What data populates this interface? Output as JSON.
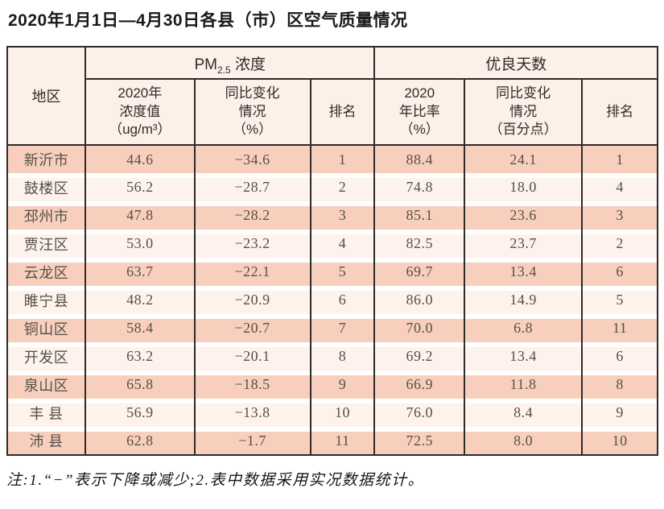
{
  "page": {
    "title": "2020年1月1日—4月30日各县（市）区空气质量情况",
    "note": "注:1.“−”表示下降或减少;2.表中数据采用实况数据统计。"
  },
  "table": {
    "region_header": "地区",
    "pm_group": {
      "prefix": "PM",
      "sub": "2.5",
      "suffix": " 浓度"
    },
    "good_group": "优良天数",
    "sub_headers": [
      "2020年\n浓度值\n（ug/m³）",
      "同比变化\n情况\n（%）",
      "排名",
      "2020\n年比率\n（%）",
      "同比变化\n情况\n（百分点）",
      "排名"
    ],
    "columns": [
      "地区",
      "2020年浓度值（ug/m³）",
      "同比变化情况（%）",
      "排名",
      "2020年比率（%）",
      "同比变化情况（百分点）",
      "排名"
    ],
    "rows": [
      {
        "region": "新沂市",
        "pm_value": "44.6",
        "pm_change": "−34.6",
        "pm_rank": "1",
        "good_ratio": "88.4",
        "good_change": "24.1",
        "good_rank": "1"
      },
      {
        "region": "鼓楼区",
        "pm_value": "56.2",
        "pm_change": "−28.7",
        "pm_rank": "2",
        "good_ratio": "74.8",
        "good_change": "18.0",
        "good_rank": "4"
      },
      {
        "region": "邳州市",
        "pm_value": "47.8",
        "pm_change": "−28.2",
        "pm_rank": "3",
        "good_ratio": "85.1",
        "good_change": "23.6",
        "good_rank": "3"
      },
      {
        "region": "贾汪区",
        "pm_value": "53.0",
        "pm_change": "−23.2",
        "pm_rank": "4",
        "good_ratio": "82.5",
        "good_change": "23.7",
        "good_rank": "2"
      },
      {
        "region": "云龙区",
        "pm_value": "63.7",
        "pm_change": "−22.1",
        "pm_rank": "5",
        "good_ratio": "69.7",
        "good_change": "13.4",
        "good_rank": "6"
      },
      {
        "region": "睢宁县",
        "pm_value": "48.2",
        "pm_change": "−20.9",
        "pm_rank": "6",
        "good_ratio": "86.0",
        "good_change": "14.9",
        "good_rank": "5"
      },
      {
        "region": "铜山区",
        "pm_value": "58.4",
        "pm_change": "−20.7",
        "pm_rank": "7",
        "good_ratio": "70.0",
        "good_change": "6.8",
        "good_rank": "11"
      },
      {
        "region": "开发区",
        "pm_value": "63.2",
        "pm_change": "−20.1",
        "pm_rank": "8",
        "good_ratio": "69.2",
        "good_change": "13.4",
        "good_rank": "6"
      },
      {
        "region": "泉山区",
        "pm_value": "65.8",
        "pm_change": "−18.5",
        "pm_rank": "9",
        "good_ratio": "66.9",
        "good_change": "11.8",
        "good_rank": "8"
      },
      {
        "region": "丰 县",
        "pm_value": "56.9",
        "pm_change": "−13.8",
        "pm_rank": "10",
        "good_ratio": "76.0",
        "good_change": "8.4",
        "good_rank": "9"
      },
      {
        "region": "沛 县",
        "pm_value": "62.8",
        "pm_change": "−1.7",
        "pm_rank": "11",
        "good_ratio": "72.5",
        "good_change": "8.0",
        "good_rank": "10"
      }
    ],
    "colors": {
      "row_salmon": "#f8cfbc",
      "row_cream": "#fdf2ec",
      "header_bg": "#fcf0e8",
      "border": "#2e2b29"
    }
  }
}
